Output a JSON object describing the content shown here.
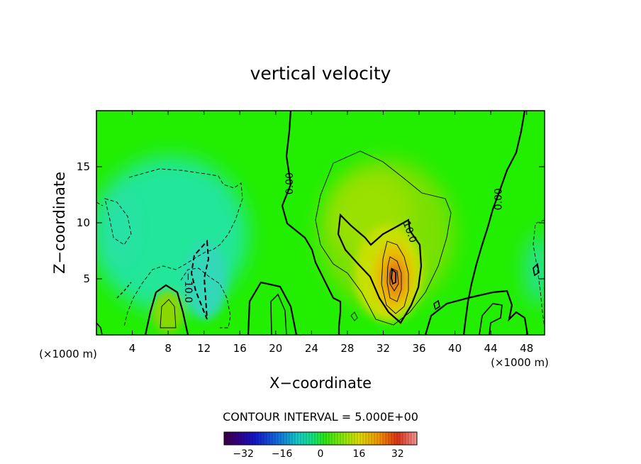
{
  "chart_data": {
    "type": "contour",
    "title": "vertical velocity",
    "xlabel": "X−coordinate",
    "ylabel": "Z−coordinate",
    "x_unit_left": "(×1000 m)",
    "x_unit_right": "(×1000 m)",
    "xlim": [
      0,
      50
    ],
    "ylim": [
      0,
      20
    ],
    "xticks": [
      4,
      8,
      12,
      16,
      20,
      24,
      28,
      32,
      36,
      40,
      44,
      48
    ],
    "yticks": [
      5,
      10,
      15
    ],
    "contour_interval_text": "CONTOUR INTERVAL = 5.000E+00",
    "contour_labels": [
      {
        "text": "0.00",
        "x": 21.5,
        "z": 13.5,
        "angle": -90
      },
      {
        "text": "0.00",
        "x": 44.8,
        "z": 12.1,
        "angle": -90
      },
      {
        "text": "10.0",
        "x": 35.0,
        "z": 9.2,
        "angle": 70
      },
      {
        "text": "−10.0",
        "x": 10.3,
        "z": 4.2,
        "angle": 90
      }
    ],
    "colorbar": {
      "min": -40,
      "max": 40,
      "tick_values": [
        -32,
        -16,
        0,
        16,
        32
      ],
      "tick_labels": [
        "−32",
        "−16",
        "0",
        "16",
        "32"
      ]
    },
    "features": [
      {
        "name": "updraft",
        "x_center": 33.2,
        "z_center": 5.2,
        "max_value": 30
      },
      {
        "name": "downdraft",
        "x_center": 11.8,
        "z_center": 3.5,
        "min_value": -15
      }
    ],
    "colors": {
      "background_field": "#22ee00",
      "max_core": "#d8600a",
      "min_core": "#30d8b8"
    }
  }
}
